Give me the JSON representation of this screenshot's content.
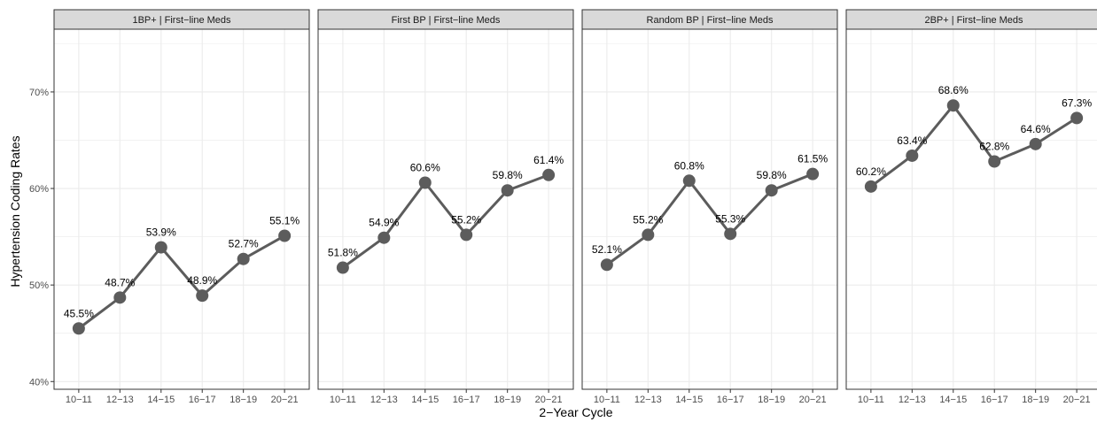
{
  "chart_data": {
    "type": "line",
    "ylabel": "Hypertension Coding Rates",
    "xlabel": "2−Year Cycle",
    "ylim": [
      39.2,
      76.5
    ],
    "y_ticks": [
      40,
      50,
      60,
      70
    ],
    "y_tick_labels": [
      "40%",
      "50%",
      "60%",
      "70%"
    ],
    "categories": [
      "10−11",
      "12−13",
      "14−15",
      "16−17",
      "18−19",
      "20−21"
    ],
    "grid": true,
    "colors": {
      "line": "#5c5c5c",
      "point": "#5c5c5c",
      "strip": "#d9d9d9",
      "grid": "#ebebeb",
      "panel_border": "#333333"
    },
    "panels": [
      {
        "title": "1BP+ | First−line Meds",
        "values": [
          45.5,
          48.7,
          53.9,
          48.9,
          52.7,
          55.1
        ],
        "labels": [
          "45.5%",
          "48.7%",
          "53.9%",
          "48.9%",
          "52.7%",
          "55.1%"
        ]
      },
      {
        "title": "First BP | First−line Meds",
        "values": [
          51.8,
          54.9,
          60.6,
          55.2,
          59.8,
          61.4
        ],
        "labels": [
          "51.8%",
          "54.9%",
          "60.6%",
          "55.2%",
          "59.8%",
          "61.4%"
        ]
      },
      {
        "title": "Random BP | First−line Meds",
        "values": [
          52.1,
          55.2,
          60.8,
          55.3,
          59.8,
          61.5
        ],
        "labels": [
          "52.1%",
          "55.2%",
          "60.8%",
          "55.3%",
          "59.8%",
          "61.5%"
        ]
      },
      {
        "title": "2BP+ | First−line Meds",
        "values": [
          60.2,
          63.4,
          68.6,
          62.8,
          64.6,
          67.3
        ],
        "labels": [
          "60.2%",
          "63.4%",
          "68.6%",
          "62.8%",
          "64.6%",
          "67.3%"
        ]
      }
    ]
  }
}
